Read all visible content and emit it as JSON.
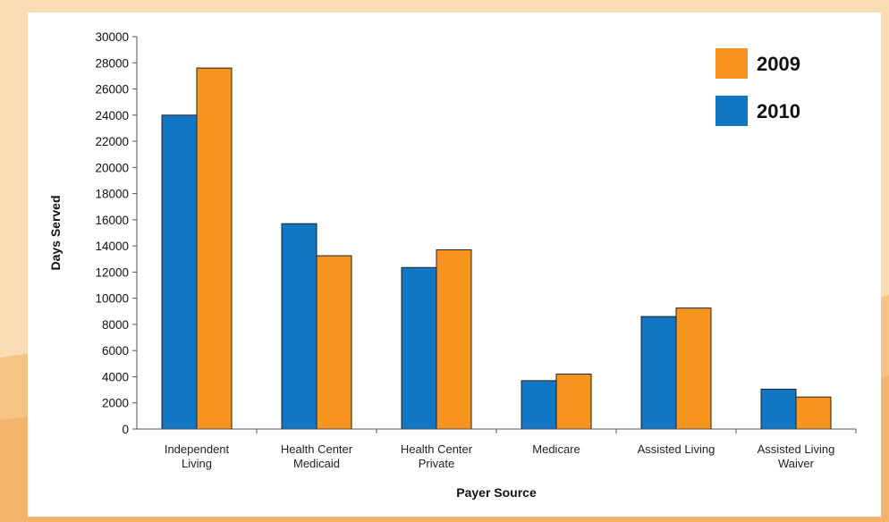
{
  "colors": {
    "background": "#f9dcb3",
    "series_2009": "#f7941d",
    "series_2010": "#1177c4"
  },
  "chart_data": {
    "type": "bar",
    "title": "",
    "xlabel": "Payer Source",
    "ylabel": "Days Served",
    "ylim": [
      0,
      30000
    ],
    "yticks": [
      0,
      2000,
      4000,
      6000,
      8000,
      10000,
      12000,
      14000,
      16000,
      18000,
      20000,
      22000,
      24000,
      26000,
      28000,
      30000
    ],
    "categories": [
      [
        "Independent",
        "Living"
      ],
      [
        "Health Center",
        "Medicaid"
      ],
      [
        "Health Center",
        "Private"
      ],
      [
        "Medicare"
      ],
      [
        "Assisted Living"
      ],
      [
        "Assisted Living",
        "Waiver"
      ]
    ],
    "series": [
      {
        "name": "2010",
        "color": "#1177c4",
        "values": [
          24000,
          15700,
          12350,
          3700,
          8600,
          3050
        ]
      },
      {
        "name": "2009",
        "color": "#f7941d",
        "values": [
          27600,
          13250,
          13700,
          4200,
          9250,
          2450
        ]
      }
    ],
    "legend": {
      "position": "top-right",
      "entries": [
        {
          "label": "2009",
          "color": "#f7941d"
        },
        {
          "label": "2010",
          "color": "#1177c4"
        }
      ]
    },
    "grid": false
  }
}
